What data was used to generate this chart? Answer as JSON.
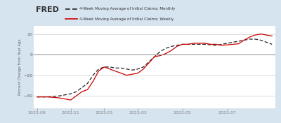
{
  "legend_monthly": "4-Week Moving Average of Initial Claims; Monthly",
  "legend_weekly": "4-Week Moving Average of Initial Claims; Weekly",
  "ylabel": "Percent Change from Year Ago",
  "background_color": "#d6e4f0",
  "plot_bg_color": "#ffffff",
  "zero_line_color": "#888888",
  "grid_color": "#cccccc",
  "ylim": [
    -52,
    28
  ],
  "yticks": [
    -40,
    -20,
    0,
    20
  ],
  "xtick_labels": [
    "2022:09",
    "2022:11",
    "2023:01",
    "2023:03",
    "2023:05",
    "2023:07"
  ],
  "xtick_positions": [
    0,
    3,
    6,
    9,
    13,
    17
  ],
  "xlim_min": -0.3,
  "xlim_max": 21.3,
  "monthly_x": [
    0,
    0.5,
    1,
    1.5,
    2,
    2.5,
    3,
    3.5,
    4,
    4.5,
    5,
    5.5,
    6,
    6.5,
    7,
    7.5,
    8,
    8.5,
    9,
    9.5,
    10,
    10.5,
    11,
    11.5,
    12,
    12.5,
    13,
    13.5,
    14,
    14.5,
    15,
    15.5,
    16,
    16.5,
    17,
    17.5,
    18,
    18.5,
    19,
    19.5,
    20,
    20.5,
    21
  ],
  "monthly_y": [
    -41,
    -41,
    -41,
    -40.5,
    -40,
    -39,
    -38,
    -36,
    -32,
    -28,
    -20,
    -14,
    -12,
    -12,
    -13,
    -13,
    -14,
    -15,
    -14,
    -12,
    -7,
    -2,
    3,
    6,
    8,
    9,
    10,
    10,
    10,
    10,
    10,
    9.5,
    9,
    10,
    11,
    12,
    13,
    14,
    15,
    15,
    14,
    12,
    10
  ],
  "weekly_x": [
    0,
    0.5,
    1,
    1.5,
    2,
    2.5,
    3,
    3.5,
    4,
    4.5,
    5,
    5.5,
    6,
    6.5,
    7,
    7.5,
    8,
    8.5,
    9,
    9.5,
    10,
    10.5,
    11,
    11.5,
    12,
    12.5,
    13,
    13.5,
    14,
    14.5,
    15,
    15.5,
    16,
    16.5,
    17,
    17.5,
    18,
    18.5,
    19,
    19.5,
    20,
    20.5,
    21
  ],
  "weekly_y": [
    -41,
    -41,
    -41,
    -41.5,
    -42,
    -43,
    -44,
    -40,
    -36,
    -34,
    -26,
    -16,
    -12,
    -14,
    -16,
    -18,
    -20,
    -19,
    -18,
    -14,
    -8,
    -2,
    -1,
    1,
    4,
    8,
    10,
    10,
    11,
    11,
    11,
    10,
    10,
    9,
    9.5,
    10,
    10.5,
    14,
    17,
    19,
    20,
    19,
    18
  ],
  "monthly_color": "#222222",
  "weekly_color": "#cc0000",
  "fred_text_color": "#333333",
  "tick_label_color": "#666666",
  "ylabel_color": "#666666"
}
